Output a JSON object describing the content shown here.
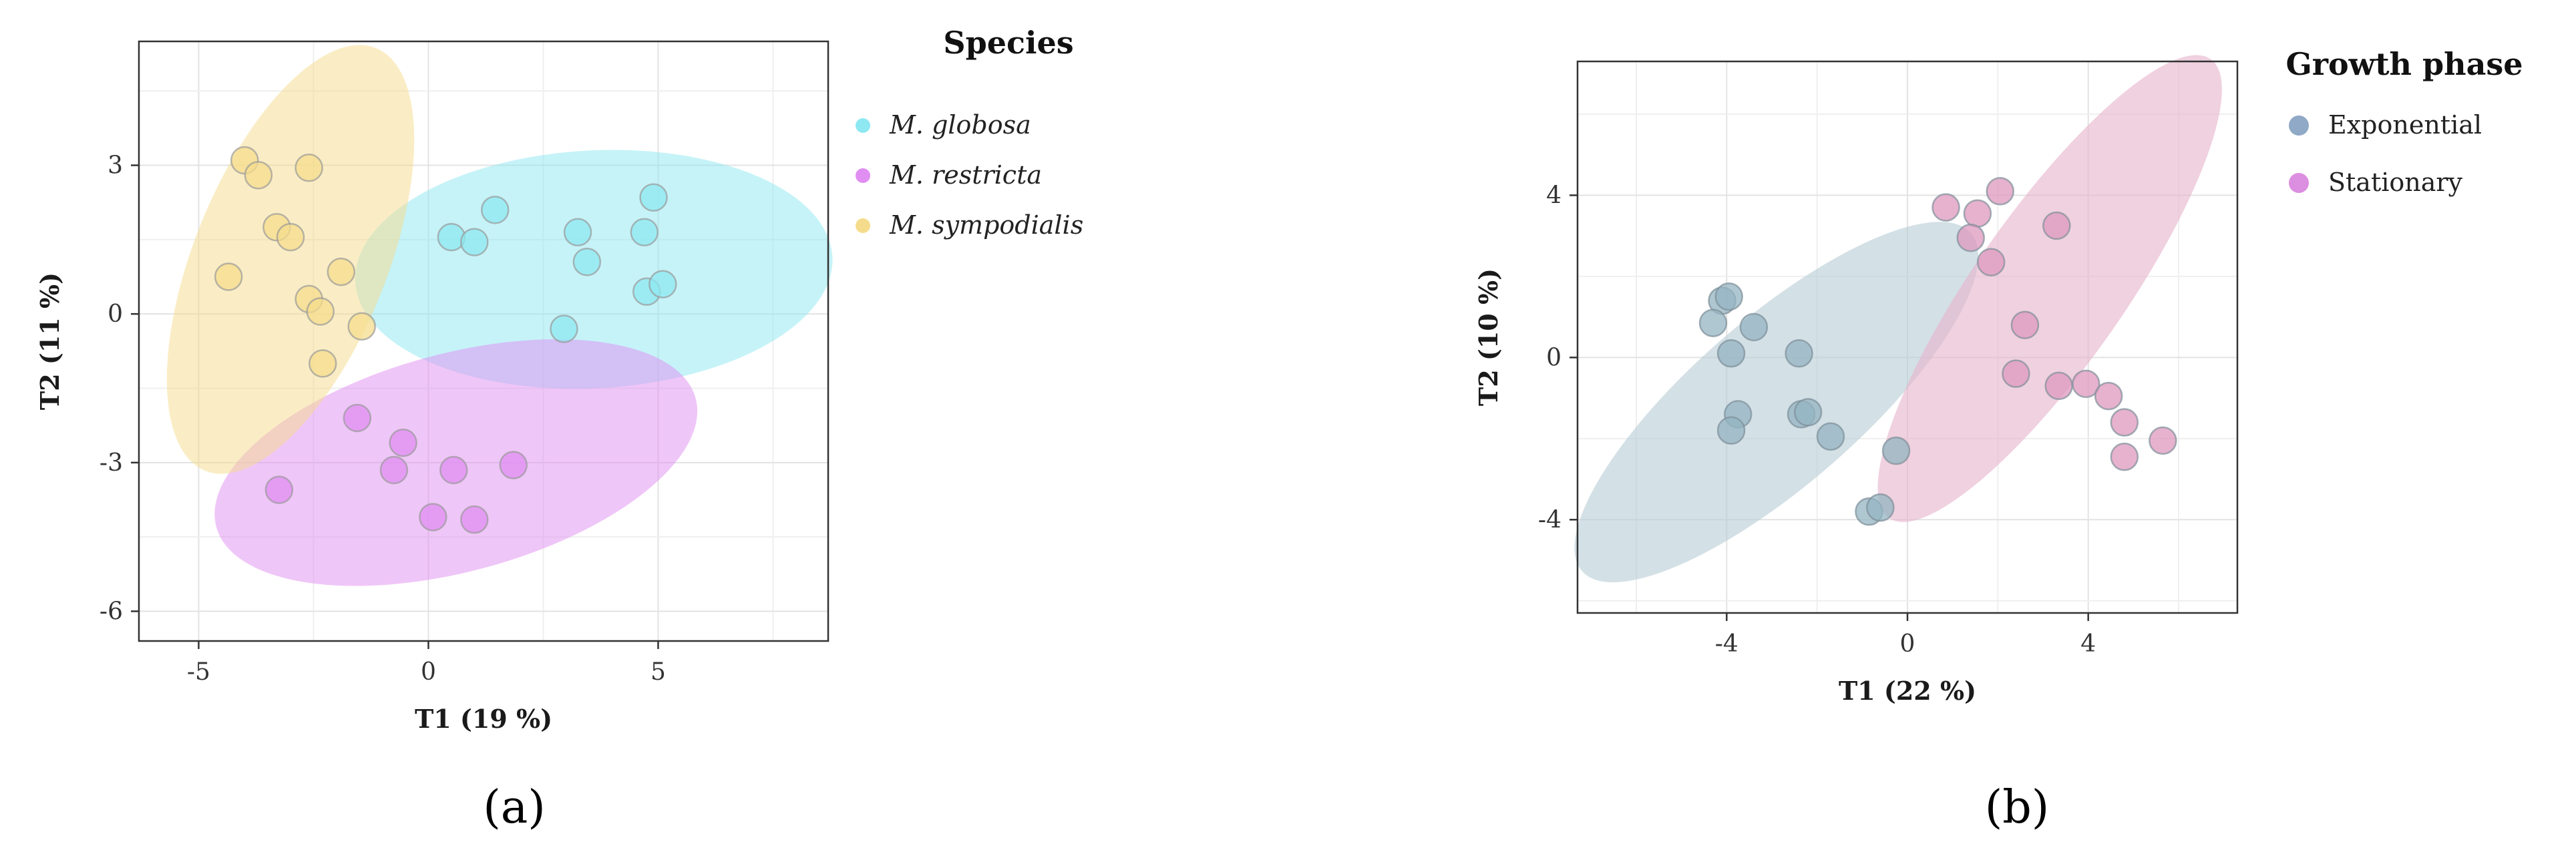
{
  "panel_labels": [
    "(a)",
    "(b)"
  ],
  "chart_data": [
    {
      "type": "scatter",
      "title": "",
      "xlabel": "T1 (19 %)",
      "ylabel": "T2 (11 %)",
      "xlim": [
        -6.3,
        8.7
      ],
      "ylim": [
        -6.6,
        5.5
      ],
      "xticks": [
        -5,
        0,
        5
      ],
      "yticks": [
        -6,
        -3,
        0,
        3
      ],
      "grid": true,
      "legend_title": "Species",
      "legend_position": "right",
      "legend_italic": true,
      "series": [
        {
          "name": "M. globosa",
          "color": "#8ee8f2",
          "ellipse": {
            "cx": 3.6,
            "cy": 0.9,
            "rx": 5.2,
            "ry": 2.4,
            "angle": -3
          },
          "points": [
            [
              0.5,
              1.55
            ],
            [
              1.0,
              1.45
            ],
            [
              1.45,
              2.1
            ],
            [
              3.25,
              1.65
            ],
            [
              3.45,
              1.05
            ],
            [
              4.7,
              1.65
            ],
            [
              4.9,
              2.35
            ],
            [
              4.75,
              0.45
            ],
            [
              5.1,
              0.6
            ],
            [
              2.95,
              -0.3
            ]
          ]
        },
        {
          "name": "M. restricta",
          "color": "#e08ef2",
          "ellipse": {
            "cx": 0.6,
            "cy": -3.0,
            "rx": 5.4,
            "ry": 2.2,
            "angle": -15
          },
          "points": [
            [
              -1.55,
              -2.1
            ],
            [
              -0.55,
              -2.6
            ],
            [
              -0.75,
              -3.15
            ],
            [
              0.55,
              -3.15
            ],
            [
              1.85,
              -3.05
            ],
            [
              -3.25,
              -3.55
            ],
            [
              0.1,
              -4.1
            ],
            [
              1.0,
              -4.15
            ]
          ]
        },
        {
          "name": "M. sympodialis",
          "color": "#f5dc8c",
          "ellipse": {
            "cx": -3.0,
            "cy": 1.1,
            "rx": 2.1,
            "ry": 4.6,
            "angle": 22
          },
          "points": [
            [
              -4.0,
              3.1
            ],
            [
              -3.7,
              2.8
            ],
            [
              -2.6,
              2.95
            ],
            [
              -3.3,
              1.75
            ],
            [
              -3.0,
              1.55
            ],
            [
              -1.9,
              0.85
            ],
            [
              -4.35,
              0.75
            ],
            [
              -2.6,
              0.3
            ],
            [
              -2.35,
              0.05
            ],
            [
              -1.45,
              -0.25
            ],
            [
              -2.3,
              -1.0
            ]
          ]
        }
      ]
    },
    {
      "type": "scatter",
      "title": "",
      "xlabel": "T1 (22 %)",
      "ylabel": "T2 (10 %)",
      "xlim": [
        -7.3,
        7.3
      ],
      "ylim": [
        -6.3,
        7.3
      ],
      "xticks": [
        -4,
        0,
        4
      ],
      "yticks": [
        -4,
        0,
        4
      ],
      "grid": true,
      "legend_title": "Growth phase",
      "legend_position": "right",
      "legend_italic": false,
      "series": [
        {
          "name": "Exponential",
          "color": "#8fa9c7",
          "ellipse_color": "#b8cdd6",
          "point_color": "#94b4c2",
          "ellipse": {
            "cx": -2.9,
            "cy": -1.1,
            "rx": 5.7,
            "ry": 2.05,
            "angle": -41
          },
          "points": [
            [
              -4.1,
              1.4
            ],
            [
              -3.95,
              1.5
            ],
            [
              -4.3,
              0.85
            ],
            [
              -3.4,
              0.75
            ],
            [
              -3.9,
              0.1
            ],
            [
              -2.4,
              0.1
            ],
            [
              -3.75,
              -1.4
            ],
            [
              -3.9,
              -1.8
            ],
            [
              -2.35,
              -1.4
            ],
            [
              -2.2,
              -1.35
            ],
            [
              -1.7,
              -1.95
            ],
            [
              -0.25,
              -2.3
            ],
            [
              -0.85,
              -3.8
            ],
            [
              -0.6,
              -3.7
            ]
          ]
        },
        {
          "name": "Stationary",
          "color": "#dc8ee0",
          "ellipse_color": "#e6b5cc",
          "point_color": "#dd98bd",
          "ellipse": {
            "cx": 3.15,
            "cy": 1.7,
            "rx": 6.2,
            "ry": 1.85,
            "angle": -55
          },
          "points": [
            [
              2.05,
              4.1
            ],
            [
              0.85,
              3.7
            ],
            [
              1.55,
              3.55
            ],
            [
              3.3,
              3.25
            ],
            [
              1.4,
              2.95
            ],
            [
              1.85,
              2.35
            ],
            [
              2.6,
              0.8
            ],
            [
              2.4,
              -0.4
            ],
            [
              3.35,
              -0.7
            ],
            [
              3.95,
              -0.65
            ],
            [
              4.45,
              -0.95
            ],
            [
              4.8,
              -1.6
            ],
            [
              5.65,
              -2.05
            ],
            [
              4.8,
              -2.45
            ]
          ]
        }
      ]
    }
  ]
}
